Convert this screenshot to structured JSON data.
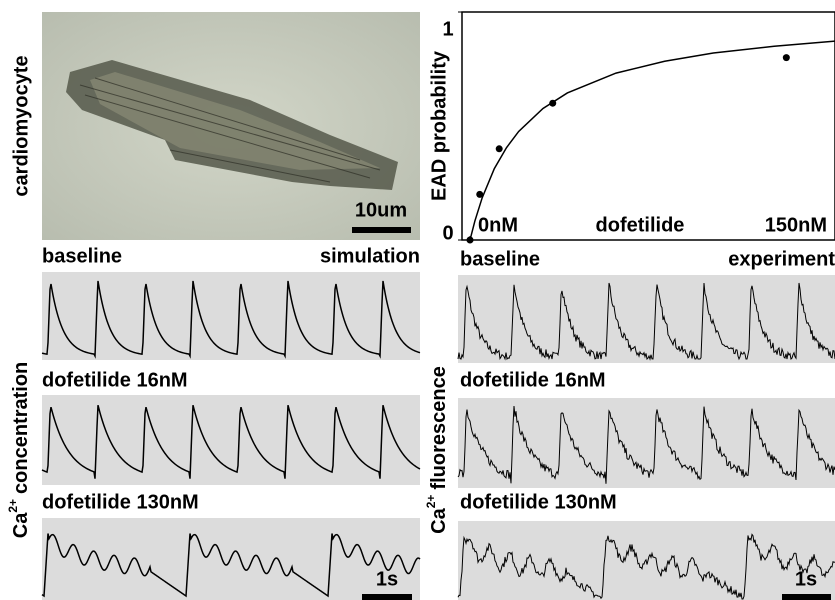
{
  "image_panel": {
    "ylabel": "cardiomyocyte",
    "scale_bar": "10um"
  },
  "chart_data": {
    "type": "scatter",
    "ylabel": "EAD probability",
    "xlabel": "dofetilide",
    "xlim": [
      0,
      150
    ],
    "ylim": [
      0,
      1
    ],
    "xticks": [
      {
        "value": 0,
        "label": "0nM"
      },
      {
        "value": 150,
        "label": "150nM"
      }
    ],
    "yticks": [
      0,
      1
    ],
    "color": "#000000",
    "points": {
      "x": [
        0,
        4,
        12,
        34,
        130
      ],
      "values": [
        0,
        0.2,
        0.4,
        0.6,
        0.8
      ]
    },
    "curve": {
      "x": [
        0,
        2,
        5,
        10,
        15,
        20,
        30,
        40,
        60,
        80,
        100,
        125,
        150
      ],
      "values": [
        0,
        0.083,
        0.185,
        0.313,
        0.405,
        0.476,
        0.577,
        0.645,
        0.732,
        0.784,
        0.82,
        0.85,
        0.872
      ]
    }
  },
  "simulation": {
    "label": "simulation",
    "ylabel_main": "Ca",
    "ylabel_sup": "2+",
    "ylabel_rest": "concentration",
    "traces": [
      "baseline",
      "dofetilide 16nM",
      "dofetilide 130nM"
    ],
    "scale_bar": "1s"
  },
  "experiment": {
    "label": "experiment",
    "ylabel_main": "Ca",
    "ylabel_sup": "2+",
    "ylabel_rest": "fluorescence",
    "traces": [
      "baseline",
      "dofetilide 16nM",
      "dofetilide 130nM"
    ],
    "scale_bar": "1s"
  }
}
